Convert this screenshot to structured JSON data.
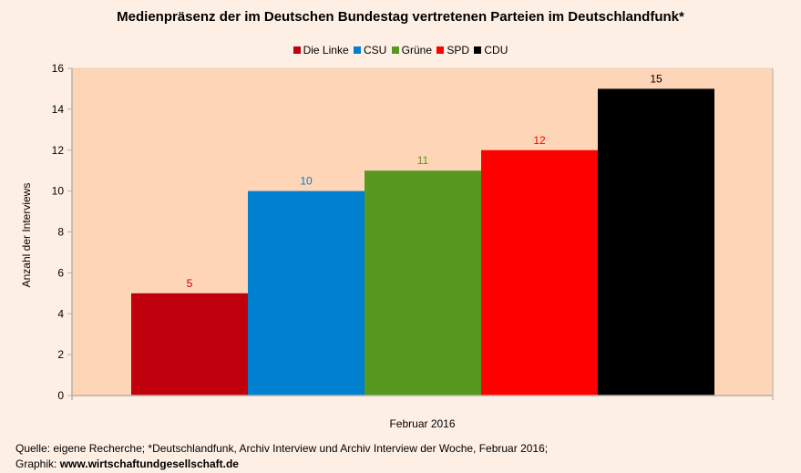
{
  "chart_data": {
    "type": "bar",
    "title": "Medienpräsenz der im Deutschen Bundestag vertretenen Parteien im Deutschlandfunk*",
    "xlabel": "",
    "ylabel": "Anzahl der Interviews",
    "category": "Februar 2016",
    "series": [
      {
        "name": "Die Linke",
        "value": 5,
        "color": "#c0000c"
      },
      {
        "name": "CSU",
        "value": 10,
        "color": "#0080d0"
      },
      {
        "name": "Grüne",
        "value": 11,
        "color": "#56991e"
      },
      {
        "name": "SPD",
        "value": 12,
        "color": "#ff0000"
      },
      {
        "name": "CDU",
        "value": 15,
        "color": "#000000"
      }
    ],
    "ylim": [
      0,
      16
    ],
    "yticks": [
      0,
      2,
      4,
      6,
      8,
      10,
      12,
      14,
      16
    ],
    "legend_position": "top-center",
    "grid": false,
    "plot_background": "#ffd5b8"
  },
  "footer": {
    "source": "Quelle: eigene Recherche; *Deutschlandfunk, Archiv Interview und Archiv Interview der Woche, Februar 2016;",
    "graphic_label": "Graphik: ",
    "graphic_site": "www.wirtschaftundgesellschaft.de"
  }
}
